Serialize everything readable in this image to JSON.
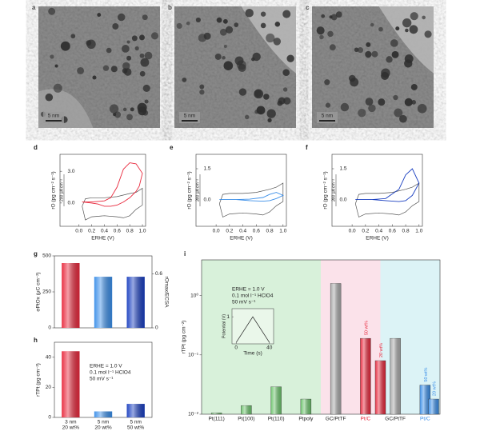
{
  "panels": {
    "a": {
      "label": "a",
      "scale_bar": "5 nm"
    },
    "b": {
      "label": "b",
      "scale_bar": "5 nm"
    },
    "c": {
      "label": "c",
      "scale_bar": "5 nm"
    },
    "d": {
      "label": "d",
      "ylabel": "rO (pg cm⁻² s⁻¹)",
      "xlabel": "ERHE (V)",
      "scale_bar": "200 μA cm⁻²",
      "xlim": [
        -0.3,
        1.05
      ],
      "xticks": [
        {
          "value": 0,
          "label": "0.0"
        },
        0.2,
        0.4,
        0.6,
        0.8,
        {
          "value": 1,
          "label": "1.0"
        }
      ],
      "ylim": [
        -2.2,
        4.6
      ],
      "yticks": [
        {
          "value": 0,
          "label": "0.0"
        },
        {
          "value": 3,
          "label": "3.0"
        }
      ],
      "current": {
        "color": "#555555",
        "x": [
          0.05,
          0.1,
          0.2,
          0.4,
          0.6,
          0.8,
          0.9,
          1.0,
          1.0,
          0.9,
          0.8,
          0.7,
          0.6,
          0.4,
          0.2,
          0.1,
          0.05
        ],
        "values": [
          -0.3,
          0.4,
          0.5,
          0.5,
          0.6,
          0.9,
          1.0,
          1.4,
          -0.2,
          -0.6,
          -1.2,
          -1.4,
          -1.3,
          -1.2,
          -1.3,
          -1.6,
          -0.3
        ]
      },
      "signal": {
        "color": "#e8283c",
        "x": [
          0.05,
          0.2,
          0.4,
          0.5,
          0.6,
          0.7,
          0.8,
          0.9,
          1.0,
          0.95,
          0.9,
          0.8,
          0.7,
          0.6,
          0.5,
          0.4,
          0.3,
          0.2,
          0.05
        ],
        "values": [
          0.1,
          0.1,
          0.2,
          0.5,
          1.5,
          3.2,
          3.8,
          3.7,
          2.8,
          1.6,
          1.1,
          0.5,
          0.1,
          -0.2,
          -0.3,
          -0.3,
          -0.1,
          0.0,
          0.1
        ]
      }
    },
    "e": {
      "label": "e",
      "ylabel": "rO (pg cm⁻² s⁻¹)",
      "xlabel": "ERHE (V)",
      "scale_bar": "200 μA cm⁻²",
      "xlim": [
        -0.3,
        1.05
      ],
      "xticks": [
        {
          "value": 0,
          "label": "0.0"
        },
        0.2,
        0.4,
        0.6,
        0.8,
        {
          "value": 1,
          "label": "1.0"
        }
      ],
      "ylim": [
        -1.3,
        2.2
      ],
      "yticks": [
        {
          "value": 0,
          "label": "0.0"
        },
        1.5
      ],
      "current": {
        "color": "#555555",
        "x": [
          0.05,
          0.1,
          0.2,
          0.4,
          0.6,
          0.8,
          0.9,
          1.0,
          1.0,
          0.9,
          0.8,
          0.7,
          0.6,
          0.4,
          0.2,
          0.1,
          0.05
        ],
        "values": [
          -0.2,
          0.25,
          0.3,
          0.3,
          0.35,
          0.5,
          0.6,
          0.8,
          -0.1,
          -0.3,
          -0.6,
          -0.75,
          -0.7,
          -0.65,
          -0.7,
          -0.85,
          -0.2
        ]
      },
      "signal": {
        "color": "#3a8ee8",
        "x": [
          0.05,
          0.3,
          0.5,
          0.7,
          0.8,
          0.9,
          1.0,
          0.9,
          0.8,
          0.7,
          0.5,
          0.3,
          0.05
        ],
        "values": [
          0,
          0,
          0.02,
          0.1,
          0.25,
          0.35,
          0.2,
          0.05,
          -0.05,
          -0.08,
          -0.05,
          0,
          0
        ]
      }
    },
    "f": {
      "label": "f",
      "ylabel": "rO (pg cm⁻² s⁻¹)",
      "xlabel": "ERHE (V)",
      "scale_bar": "200 μA cm⁻²",
      "xlim": [
        -0.3,
        1.05
      ],
      "xticks": [
        {
          "value": 0,
          "label": "0.0"
        },
        0.2,
        0.4,
        0.6,
        0.8,
        {
          "value": 1,
          "label": "1.0"
        }
      ],
      "ylim": [
        -1.3,
        2.2
      ],
      "yticks": [
        {
          "value": 0,
          "label": "0.0"
        },
        1.5
      ],
      "current": {
        "color": "#555555",
        "x": [
          0.05,
          0.1,
          0.2,
          0.4,
          0.6,
          0.8,
          0.9,
          1.0,
          1.0,
          0.9,
          0.8,
          0.7,
          0.6,
          0.4,
          0.2,
          0.1,
          0.05
        ],
        "values": [
          -0.2,
          0.25,
          0.3,
          0.3,
          0.35,
          0.5,
          0.6,
          0.8,
          -0.1,
          -0.3,
          -0.6,
          -0.75,
          -0.7,
          -0.65,
          -0.7,
          -0.85,
          -0.2
        ]
      },
      "signal": {
        "color": "#1a3fc0",
        "x": [
          0.05,
          0.3,
          0.5,
          0.7,
          0.8,
          0.9,
          1.0,
          0.9,
          0.8,
          0.7,
          0.5,
          0.3,
          0.05
        ],
        "values": [
          0,
          0,
          0.05,
          0.5,
          1.2,
          1.5,
          0.8,
          0.2,
          -0.05,
          -0.1,
          -0.05,
          0,
          0
        ]
      }
    },
    "g": {
      "label": "g",
      "ylabel": "σPtOx (μC cm⁻²)",
      "y2label": "rOmax/ECSA",
      "ylim": [
        0,
        500
      ],
      "yticks": [
        0,
        250,
        500
      ],
      "y2lim": [
        0,
        0.8
      ],
      "y2ticks": [
        0,
        0.6
      ],
      "colors": [
        "#e8283c",
        "#3a8ee8",
        "#1a3fc0"
      ],
      "values": [
        450,
        355,
        355
      ]
    },
    "h": {
      "label": "h",
      "ylabel": "rTPt (pg cm⁻²)",
      "ylim": [
        0,
        50
      ],
      "yticks": [
        0,
        20,
        40
      ],
      "annotation": [
        "ERHE = 1.0 V",
        "0.1 mol l⁻¹ HClO4",
        "50 mV s⁻¹"
      ],
      "colors": [
        "#e8283c",
        "#3a8ee8",
        "#1a3fc0"
      ],
      "categories": [
        [
          "3 nm",
          "20 wt%"
        ],
        [
          "5 nm",
          "20 wt%"
        ],
        [
          "5 nm",
          "50 wt%"
        ]
      ],
      "values": [
        44,
        4,
        9
      ]
    },
    "i": {
      "label": "i",
      "ylabel": "rTPt (pg cm⁻²)",
      "log": true,
      "ylim": [
        0.01,
        4
      ],
      "yticks": [
        {
          "value": 0.01,
          "label": "10⁻²"
        },
        {
          "value": 0.1,
          "label": "10⁻¹"
        },
        {
          "value": 1,
          "label": "10⁰"
        }
      ],
      "annotation": [
        "ERHE = 1.0 V",
        "0.1 mol l⁻¹ HClO4",
        "50 mV s⁻¹"
      ],
      "bars": [
        {
          "category": "Pt(111)",
          "value": 0.0105,
          "color": "#6cc46c",
          "bg": "#d8f1da"
        },
        {
          "category": "Pt(100)",
          "value": 0.014,
          "color": "#6cc46c",
          "bg": "#d8f1da"
        },
        {
          "category": "Pt(110)",
          "value": 0.029,
          "color": "#6cc46c",
          "bg": "#d8f1da"
        },
        {
          "category": "Ptpoly",
          "value": 0.018,
          "color": "#6cc46c",
          "bg": "#d8f1da"
        },
        {
          "category": "GC/PtTF",
          "value": 1.6,
          "color": "#a8a8a8",
          "bg": "#fbe2ea"
        },
        {
          "category": "Pt/C",
          "value": 0.19,
          "color": "#e8283c",
          "bg": "#fbe2ea",
          "tag": "50 wt%"
        },
        {
          "category": "GC/PtTF",
          "value": 0.19,
          "color": "#a8a8a8",
          "bg": "#dcf3f6"
        },
        {
          "category": "Pt/C",
          "value": 0.031,
          "color": "#3a8ee8",
          "bg": "#dcf3f6",
          "tag": "50 wt%"
        }
      ],
      "extra": {
        "value": 0.08,
        "color": "#e8283c",
        "tag": "20 wt%",
        "after": 5,
        "value2": 0.018,
        "color2": "#3a8ee8",
        "tag2": "20 wt%"
      },
      "inset": {
        "xlabel": "Time (s)",
        "ylabel": "Potential (V)",
        "xlim": [
          -5,
          45
        ],
        "xticks": [
          0,
          40
        ],
        "ylim": [
          0,
          1.3
        ],
        "yticks": [
          1
        ],
        "x": [
          0,
          20,
          40
        ],
        "values": [
          0.05,
          1,
          0.05
        ]
      }
    }
  }
}
